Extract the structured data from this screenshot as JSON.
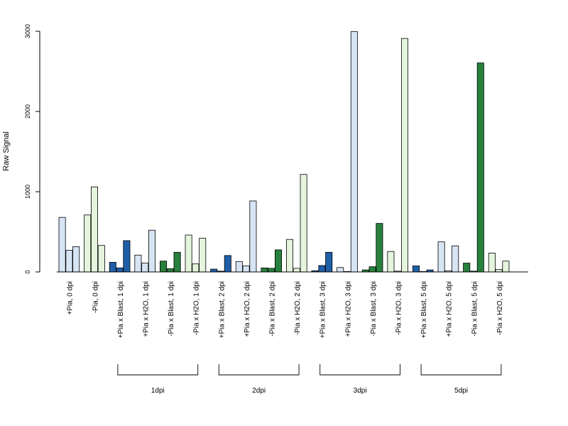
{
  "chart_data": {
    "type": "bar",
    "ylabel": "Raw Signal",
    "xlabel": "",
    "ylim": [
      0,
      3000
    ],
    "yticks": [
      0,
      1000,
      2000,
      3000
    ],
    "ytick_labels": [
      "0",
      "1000",
      "2000",
      "3000"
    ],
    "grid": false,
    "legend": "none",
    "categories": [
      "+Pia, 0 dpi",
      "-Pia, 0 dpi",
      "+Pia x Blast, 1 dpi",
      "+Pia x H2O, 1 dpi",
      "-Pia x Blast, 1 dpi",
      "-Pia x H2O, 1 dpi",
      "+Pia x Blast, 2 dpi",
      "+Pia x H2O, 2 dpi",
      "-Pia x Blast, 2 dpi",
      "-Pia x H2O, 2 dpi",
      "+Pia x Blast, 3 dpi",
      "+Pia x H2O, 3 dpi",
      "-Pia x Blast, 3 dpi",
      "-Pia x H2O, 3 dpi",
      "+Pia x Blast, 5 dpi",
      "+Pia x H2O, 5 dpi",
      "-Pia x Blast, 5 dpi",
      "-Pia x H2O, 5 dpi"
    ],
    "bar_colors": [
      "#d6e4f4",
      "#e4f4dd",
      "#1f5fa8",
      "#d6e4f4",
      "#27803c",
      "#e4f4dd",
      "#1f5fa8",
      "#d6e4f4",
      "#27803c",
      "#e4f4dd",
      "#1f5fa8",
      "#d6e4f4",
      "#27803c",
      "#e4f4dd",
      "#1f5fa8",
      "#d6e4f4",
      "#27803c",
      "#e4f4dd"
    ],
    "values": [
      [
        680,
        270,
        315
      ],
      [
        710,
        1060,
        330
      ],
      [
        120,
        50,
        390
      ],
      [
        210,
        110,
        520
      ],
      [
        135,
        40,
        245
      ],
      [
        460,
        100,
        420
      ],
      [
        35,
        10,
        205
      ],
      [
        130,
        75,
        885
      ],
      [
        50,
        45,
        275
      ],
      [
        405,
        45,
        1215
      ],
      [
        15,
        80,
        245
      ],
      [
        55,
        5,
        2995
      ],
      [
        25,
        65,
        605
      ],
      [
        255,
        10,
        2910
      ],
      [
        75,
        5,
        25
      ],
      [
        375,
        15,
        325
      ],
      [
        110,
        10,
        2605
      ],
      [
        235,
        30,
        135
      ]
    ],
    "groups": [
      {
        "label": "1dpi",
        "from": 2,
        "to": 5
      },
      {
        "label": "2dpi",
        "from": 6,
        "to": 9
      },
      {
        "label": "3dpi",
        "from": 10,
        "to": 13
      },
      {
        "label": "5dpi",
        "from": 14,
        "to": 17
      }
    ]
  }
}
